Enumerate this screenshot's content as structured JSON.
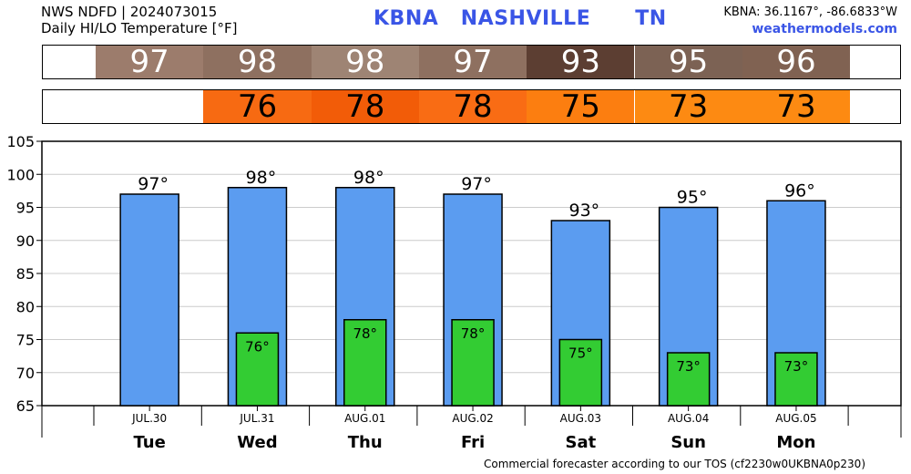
{
  "header": {
    "line1": "NWS NDFD | 2024073015",
    "line2": "Daily HI/LO Temperature [°F]",
    "station": "KBNA",
    "city": "NASHVILLE",
    "state": "TN",
    "coords": "KBNA: 36.1167°, -86.6833°W",
    "site": "weathermodels.com"
  },
  "strip_hi": {
    "values": [
      97,
      98,
      98,
      97,
      93,
      95,
      96
    ],
    "colors": [
      "#9c7c6c",
      "#8e7060",
      "#9e8474",
      "#8e7060",
      "#5c3e32",
      "#7c6254",
      "#806252"
    ]
  },
  "strip_lo": {
    "values": [
      76,
      78,
      78,
      75,
      73,
      73
    ],
    "colors": [
      "#f76a12",
      "#f25c08",
      "#f96c14",
      "#fc7e10",
      "#fd8a12",
      "#fd8a12"
    ]
  },
  "chart_data": {
    "type": "bar",
    "categories": [
      "Tue",
      "Wed",
      "Thu",
      "Fri",
      "Sat",
      "Sun",
      "Mon"
    ],
    "dates": [
      "JUL.30",
      "JUL.31",
      "AUG.01",
      "AUG.02",
      "AUG.03",
      "AUG.04",
      "AUG.05"
    ],
    "series": [
      {
        "values": [
          97,
          98,
          98,
          97,
          93,
          95,
          96
        ],
        "labels": [
          "97°",
          "98°",
          "98°",
          "97°",
          "93°",
          "95°",
          "96°"
        ],
        "color": "#5b9cf0"
      },
      {
        "values": [
          null,
          76,
          78,
          78,
          75,
          73,
          73
        ],
        "labels": [
          "",
          "76°",
          "78°",
          "78°",
          "75°",
          "73°",
          "73°"
        ],
        "color": "#33cc33"
      }
    ],
    "ylim": [
      65,
      105
    ],
    "yticks": [
      65,
      70,
      75,
      80,
      85,
      90,
      95,
      100,
      105
    ],
    "grid": true
  },
  "footer": "Commercial forecaster according to our TOS (cf2230w0UKBNA0p230)"
}
